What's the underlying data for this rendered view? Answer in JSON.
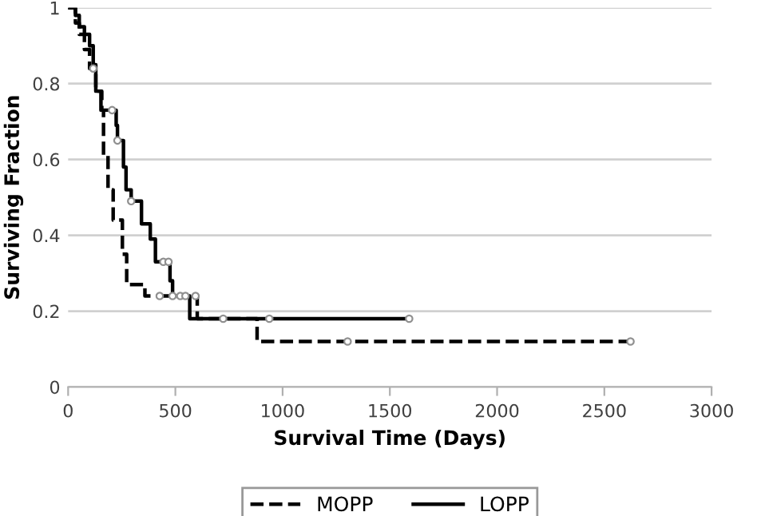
{
  "chart_data": {
    "type": "step",
    "xlabel": "Survival Time (Days)",
    "ylabel": "Surviving Fraction",
    "xlim": [
      0,
      3000
    ],
    "xticks": [
      0,
      500,
      1000,
      1500,
      2000,
      2500,
      3000
    ],
    "ylim": [
      0,
      1
    ],
    "yticks": [
      0,
      {
        "value": 0.2,
        "label": "0.2"
      },
      {
        "value": 0.4,
        "label": "0.4"
      },
      {
        "value": 0.6,
        "label": "0.6"
      },
      {
        "value": 0.8,
        "label": "0.8"
      },
      1
    ],
    "grid": "y",
    "legend": "bottom",
    "series": [
      {
        "name": "MOPP",
        "color": "#000000",
        "line_style": "dashed",
        "marker": "none",
        "x": [
          0,
          34,
          52,
          76,
          100,
          129,
          157,
          165,
          186,
          210,
          253,
          273,
          358,
          602,
          881,
          2622
        ],
        "values": [
          1,
          0.96,
          0.93,
          0.89,
          0.84,
          0.78,
          0.73,
          0.61,
          0.52,
          0.44,
          0.35,
          0.27,
          0.24,
          0.18,
          0.12,
          0.12
        ]
      },
      {
        "name": "LOPP",
        "color": "#000000",
        "line_style": "solid",
        "marker": "none",
        "x": [
          0,
          34,
          52,
          76,
          100,
          117,
          129,
          153,
          224,
          230,
          258,
          270,
          294,
          342,
          383,
          407,
          475,
          487,
          567,
          1590
        ],
        "values": [
          1,
          0.98,
          0.95,
          0.93,
          0.9,
          0.85,
          0.78,
          0.73,
          0.69,
          0.65,
          0.58,
          0.52,
          0.49,
          0.43,
          0.39,
          0.33,
          0.28,
          0.24,
          0.18,
          0.18
        ]
      },
      {
        "type": "scatter",
        "color": "#909090",
        "marker": "circle",
        "x": [
          117,
          427,
          487,
          523,
          547,
          594,
          723,
          1303,
          2622
        ],
        "values": [
          0.84,
          0.24,
          0.24,
          0.24,
          0.24,
          0.24,
          0.18,
          0.12,
          0.12
        ]
      },
      {
        "type": "scatter",
        "color": "#909090",
        "marker": "circle",
        "x": [
          205,
          230,
          294,
          444,
          468,
          938,
          1590
        ],
        "values": [
          0.73,
          0.65,
          0.49,
          0.33,
          0.33,
          0.18,
          0.18
        ]
      }
    ]
  }
}
